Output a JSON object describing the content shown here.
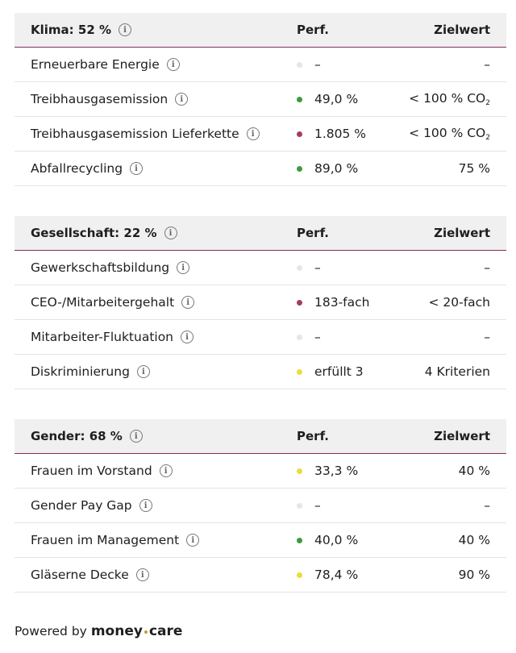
{
  "colors": {
    "green": "#3e9a3e",
    "red": "#a83a66",
    "yellow": "#e9de3a",
    "gray": "#e6e6e6",
    "accent": "#8a2a62"
  },
  "headers": {
    "perf": "Perf.",
    "goal": "Zielwert"
  },
  "sections": [
    {
      "title": "Klima: 52 %",
      "rows": [
        {
          "name": "Erneuerbare Energie",
          "status": "gray",
          "perf": "–",
          "goal": "–"
        },
        {
          "name": "Treibhausgasemission",
          "status": "green",
          "perf": "49,0 %",
          "goal": "< 100 % CO",
          "goal_sub": "2"
        },
        {
          "name": "Treibhausgasemission Lieferkette",
          "status": "red",
          "perf": "1.805 %",
          "goal": "< 100 % CO",
          "goal_sub": "2"
        },
        {
          "name": "Abfallrecycling",
          "status": "green",
          "perf": "89,0 %",
          "goal": "75 %"
        }
      ]
    },
    {
      "title": "Gesellschaft: 22 %",
      "rows": [
        {
          "name": "Gewerkschaftsbildung",
          "status": "gray",
          "perf": "–",
          "goal": "–"
        },
        {
          "name": "CEO-/Mitarbeitergehalt",
          "status": "red",
          "perf": "183-fach",
          "goal": "< 20-fach"
        },
        {
          "name": "Mitarbeiter-Fluktuation",
          "status": "gray",
          "perf": "–",
          "goal": "–"
        },
        {
          "name": "Diskriminierung",
          "status": "yellow",
          "perf": "erfüllt 3",
          "goal": "4 Kriterien"
        }
      ]
    },
    {
      "title": "Gender: 68 %",
      "rows": [
        {
          "name": "Frauen im Vorstand",
          "status": "yellow",
          "perf": "33,3 %",
          "goal": "40 %"
        },
        {
          "name": "Gender Pay Gap",
          "status": "gray",
          "perf": "–",
          "goal": "–"
        },
        {
          "name": "Frauen im Management",
          "status": "green",
          "perf": "40,0 %",
          "goal": "40 %"
        },
        {
          "name": "Gläserne Decke",
          "status": "yellow",
          "perf": "78,4 %",
          "goal": "90 %"
        }
      ]
    }
  ],
  "footer": {
    "powered": "Powered by",
    "brand_a": "money",
    "brand_b": "care"
  }
}
